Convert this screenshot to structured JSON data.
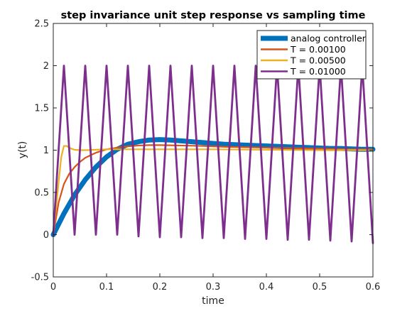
{
  "chart_data": {
    "type": "line",
    "title": "step invariance unit step response vs sampling time",
    "xlabel": "time",
    "ylabel": "y(t)",
    "xlim": [
      0,
      0.6
    ],
    "ylim": [
      -0.5,
      2.5
    ],
    "xticks": [
      0,
      0.1,
      0.2,
      0.3,
      0.4,
      0.5,
      0.6
    ],
    "yticks": [
      -0.5,
      0,
      0.5,
      1,
      1.5,
      2,
      2.5
    ],
    "xtick_labels": [
      "0",
      "0.1",
      "0.2",
      "0.3",
      "0.4",
      "0.5",
      "0.6"
    ],
    "ytick_labels": [
      "-0.5",
      "0",
      "0.5",
      "1",
      "1.5",
      "2",
      "2.5"
    ],
    "grid": false,
    "legend_position": "top-right",
    "series": [
      {
        "name": "analog controller",
        "color": "#0072bd",
        "points": [
          [
            0,
            0
          ],
          [
            0.02,
            0.25
          ],
          [
            0.04,
            0.47
          ],
          [
            0.06,
            0.65
          ],
          [
            0.08,
            0.8
          ],
          [
            0.1,
            0.92
          ],
          [
            0.12,
            1.01
          ],
          [
            0.14,
            1.07
          ],
          [
            0.16,
            1.1
          ],
          [
            0.18,
            1.12
          ],
          [
            0.2,
            1.125
          ],
          [
            0.22,
            1.12
          ],
          [
            0.24,
            1.11
          ],
          [
            0.26,
            1.1
          ],
          [
            0.28,
            1.09
          ],
          [
            0.3,
            1.08
          ],
          [
            0.32,
            1.07
          ],
          [
            0.34,
            1.065
          ],
          [
            0.36,
            1.06
          ],
          [
            0.38,
            1.055
          ],
          [
            0.4,
            1.05
          ],
          [
            0.42,
            1.045
          ],
          [
            0.44,
            1.04
          ],
          [
            0.46,
            1.035
          ],
          [
            0.48,
            1.03
          ],
          [
            0.5,
            1.025
          ],
          [
            0.52,
            1.02
          ],
          [
            0.54,
            1.02
          ],
          [
            0.56,
            1.015
          ],
          [
            0.58,
            1.01
          ],
          [
            0.6,
            1.01
          ]
        ]
      },
      {
        "name": "T = 0.00100",
        "color": "#d95319",
        "points": [
          [
            0,
            0
          ],
          [
            0.01,
            0.38
          ],
          [
            0.02,
            0.6
          ],
          [
            0.03,
            0.72
          ],
          [
            0.04,
            0.8
          ],
          [
            0.05,
            0.86
          ],
          [
            0.06,
            0.91
          ],
          [
            0.08,
            0.97
          ],
          [
            0.1,
            1.01
          ],
          [
            0.12,
            1.03
          ],
          [
            0.14,
            1.045
          ],
          [
            0.16,
            1.055
          ],
          [
            0.18,
            1.06
          ],
          [
            0.2,
            1.06
          ],
          [
            0.24,
            1.055
          ],
          [
            0.28,
            1.05
          ],
          [
            0.32,
            1.04
          ],
          [
            0.36,
            1.035
          ],
          [
            0.4,
            1.03
          ],
          [
            0.44,
            1.025
          ],
          [
            0.48,
            1.02
          ],
          [
            0.52,
            1.015
          ],
          [
            0.56,
            1.01
          ],
          [
            0.6,
            1.01
          ]
        ]
      },
      {
        "name": "T = 0.00500",
        "color": "#edb120",
        "points": [
          [
            0,
            0
          ],
          [
            0.005,
            0.3
          ],
          [
            0.01,
            0.62
          ],
          [
            0.015,
            0.92
          ],
          [
            0.02,
            1.05
          ],
          [
            0.025,
            1.05
          ],
          [
            0.03,
            1.03
          ],
          [
            0.035,
            1.015
          ],
          [
            0.04,
            1.005
          ],
          [
            0.05,
            1.0
          ],
          [
            0.06,
            1.0
          ],
          [
            0.08,
            1.005
          ],
          [
            0.1,
            1.01
          ],
          [
            0.14,
            1.01
          ],
          [
            0.2,
            1.01
          ],
          [
            0.3,
            1.01
          ],
          [
            0.4,
            1.005
          ],
          [
            0.5,
            1.0
          ],
          [
            0.6,
            1.0
          ]
        ]
      },
      {
        "name": "T = 0.01000",
        "color": "#7e2f8e",
        "points": [
          [
            0,
            0
          ],
          [
            0.01,
            1.0
          ],
          [
            0.02,
            2.0
          ],
          [
            0.04,
            0.0
          ],
          [
            0.06,
            2.0
          ],
          [
            0.08,
            0.0
          ],
          [
            0.1,
            2.0
          ],
          [
            0.12,
            0.0
          ],
          [
            0.14,
            2.0
          ],
          [
            0.16,
            -0.02
          ],
          [
            0.18,
            2.0
          ],
          [
            0.2,
            -0.03
          ],
          [
            0.22,
            2.0
          ],
          [
            0.24,
            -0.03
          ],
          [
            0.26,
            2.0
          ],
          [
            0.28,
            -0.04
          ],
          [
            0.3,
            2.0
          ],
          [
            0.32,
            -0.04
          ],
          [
            0.34,
            2.0
          ],
          [
            0.36,
            -0.05
          ],
          [
            0.38,
            2.0
          ],
          [
            0.4,
            -0.05
          ],
          [
            0.42,
            2.0
          ],
          [
            0.44,
            -0.06
          ],
          [
            0.46,
            2.0
          ],
          [
            0.48,
            -0.06
          ],
          [
            0.5,
            2.0
          ],
          [
            0.52,
            -0.07
          ],
          [
            0.54,
            2.0
          ],
          [
            0.56,
            -0.08
          ],
          [
            0.58,
            2.0
          ],
          [
            0.6,
            -0.1
          ]
        ]
      }
    ]
  }
}
